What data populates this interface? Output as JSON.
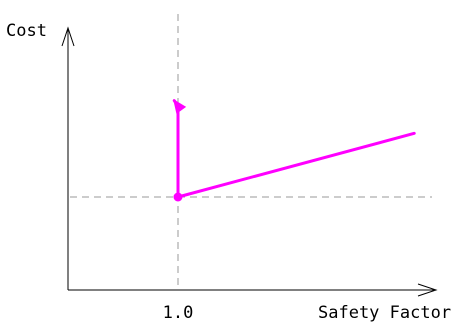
{
  "chart_data": {
    "type": "line",
    "title": "",
    "xlabel": "Safety Factor",
    "ylabel": "Cost",
    "x_tick_labels": [
      "1.0"
    ],
    "grid": false,
    "legend": "none",
    "reference_lines": {
      "vertical_x": 1.0,
      "horizontal_y": 0,
      "style": "dashed",
      "color": "#999999"
    },
    "series": [
      {
        "color": "#ff00ff",
        "segments": [
          {
            "description": "vertical rise at x = 1.0",
            "x": [
              1.0,
              1.0
            ],
            "y": [
              0,
              1.06
            ]
          },
          {
            "description": "short return toward upper-left ending in arrowhead",
            "x": [
              1.0,
              0.95
            ],
            "y": [
              1.06,
              1.12
            ]
          },
          {
            "description": "linear increase for x > 1.0",
            "x": [
              1.0,
              4.15
            ],
            "y": [
              0,
              0.74
            ]
          }
        ],
        "marker_at": {
          "x": 1.0,
          "y": 0
        }
      }
    ]
  }
}
